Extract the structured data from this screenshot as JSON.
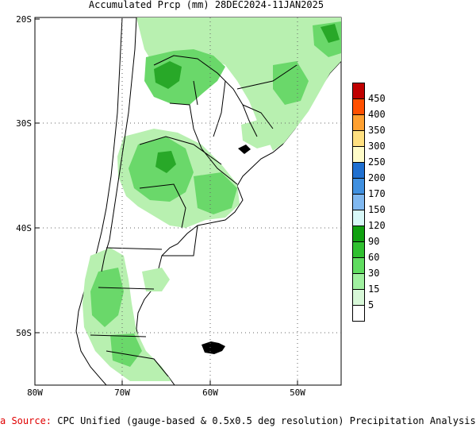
{
  "title": "Accumulated Prcp (mm) 28DEC2024-11JAN2025",
  "y_ticks": [
    "20S",
    "30S",
    "40S",
    "50S"
  ],
  "x_ticks": [
    "80W",
    "70W",
    "60W",
    "50W"
  ],
  "legend": {
    "labels": [
      "450",
      "400",
      "350",
      "300",
      "250",
      "200",
      "170",
      "150",
      "120",
      "90",
      "60",
      "30",
      "15",
      "5"
    ],
    "colors": [
      "#c00000",
      "#ff5000",
      "#ffa030",
      "#ffe080",
      "#fffcc8",
      "#2070d0",
      "#4090e0",
      "#80b8f0",
      "#d8f8f8",
      "#10a010",
      "#30c030",
      "#60dc60",
      "#a0f0a0",
      "#d8f8d8",
      "#ffffff"
    ]
  },
  "footer": {
    "source_label": "a Source:",
    "text": "CPC Unified (gauge-based & 0.5x0.5 deg resolution) Precipitation Analysis"
  },
  "colors": {
    "ocean": "#ffffff",
    "land": "#ffffff",
    "light_green": "#b8f0b0",
    "mid_green": "#6ad86a",
    "dark_green": "#28a828",
    "border": "#000000"
  }
}
